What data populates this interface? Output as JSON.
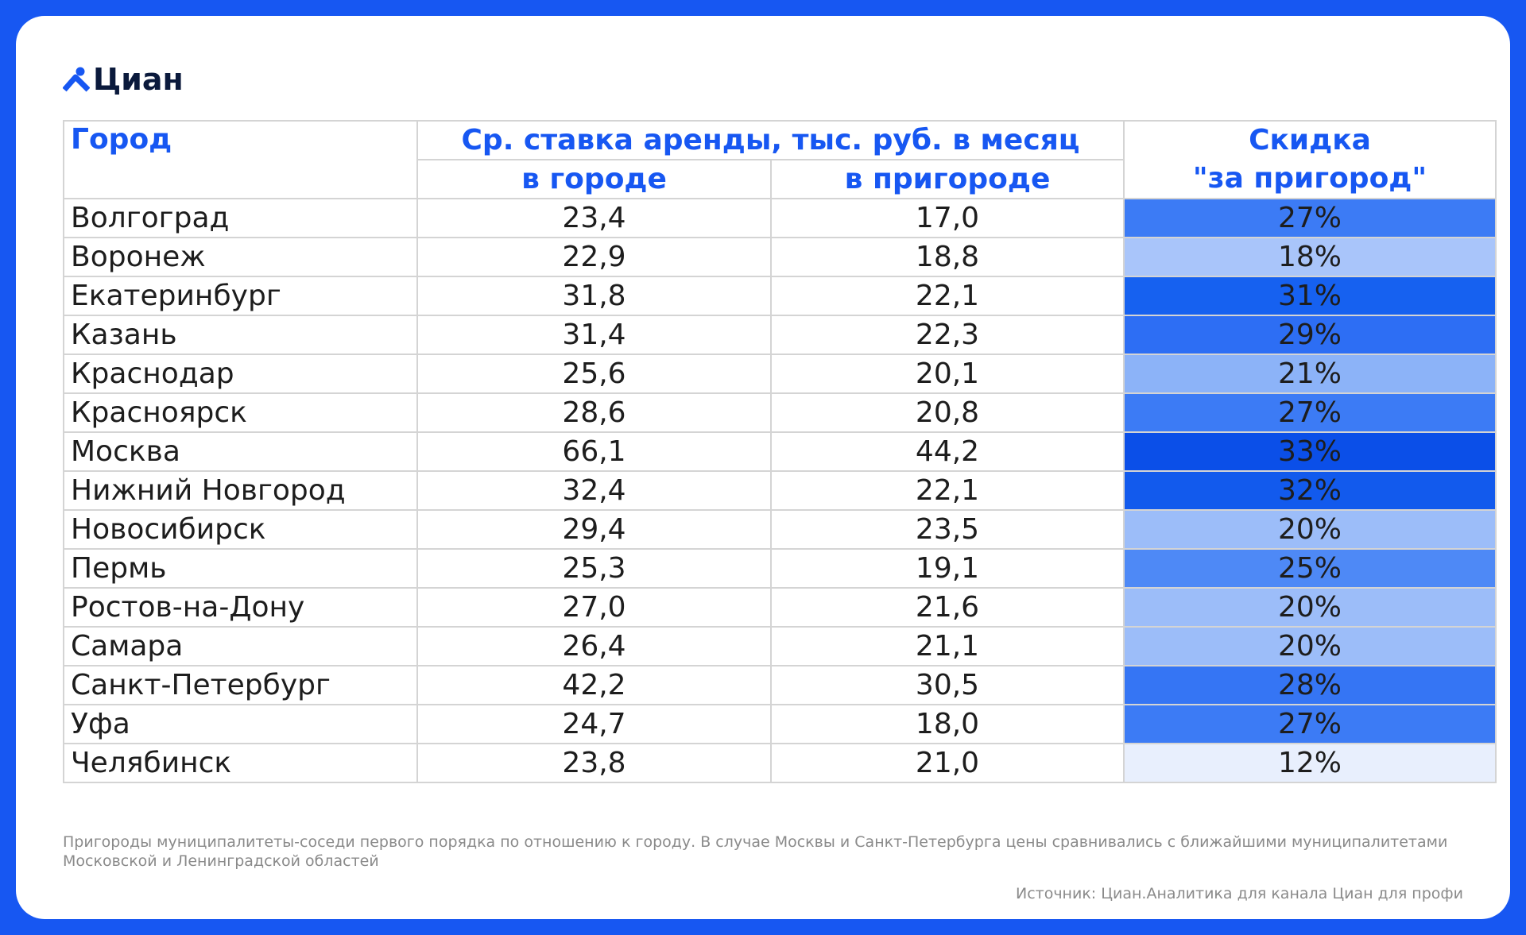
{
  "header": {
    "logo": "Циан"
  },
  "table": {
    "columns": {
      "city": "Город",
      "rate": "Ср. ставка аренды, тыс. руб. в месяц",
      "in_city": "в городе",
      "suburb": "в пригороде",
      "discount": "Скидка\n\"за пригород\""
    },
    "rows": [
      [
        "Волгоград",
        "23,4",
        "17,0",
        "27%"
      ],
      [
        "Воронеж",
        "22,9",
        "18,8",
        "18%"
      ],
      [
        "Екатеринбург",
        "31,8",
        "22,1",
        "31%"
      ],
      [
        "Казань",
        "31,4",
        "22,3",
        "29%"
      ],
      [
        "Краснодар",
        "25,6",
        "20,1",
        "21%"
      ],
      [
        "Красноярск",
        "28,6",
        "20,8",
        "27%"
      ],
      [
        "Москва",
        "66,1",
        "44,2",
        "33%"
      ],
      [
        "Нижний Новгород",
        "32,4",
        "22,1",
        "32%"
      ],
      [
        "Новосибирск",
        "29,4",
        "23,5",
        "20%"
      ],
      [
        "Пермь",
        "25,3",
        "19,1",
        "25%"
      ],
      [
        "Ростов-на-Дону",
        "27,0",
        "21,6",
        "20%"
      ],
      [
        "Самара",
        "26,4",
        "21,1",
        "20%"
      ],
      [
        "Санкт-Петербург",
        "42,2",
        "30,5",
        "28%"
      ],
      [
        "Уфа",
        "24,7",
        "18,0",
        "27%"
      ],
      [
        "Челябинск",
        "23,8",
        "21,0",
        "12%"
      ]
    ],
    "discount_colors": [
      "#3c7bf5",
      "#a9c5fa",
      "#1661f0",
      "#2d6ef4",
      "#8cb3f8",
      "#3c7bf5",
      "#0b4fe8",
      "#125aed",
      "#9cbdf9",
      "#4e89f6",
      "#9cbdf9",
      "#9cbdf9",
      "#3575f4",
      "#3c7bf5",
      "#e8effd"
    ]
  },
  "footer": {
    "note": "Пригороды муниципалитеты-соседи первого порядка по отношению к городу. В случае Москвы и Санкт-Петербурга цены сравнивались с ближайшими муниципалитетами Московской и Ленинградской областей",
    "source": "Источник: Циан.Аналитика для канала Циан для профи"
  }
}
